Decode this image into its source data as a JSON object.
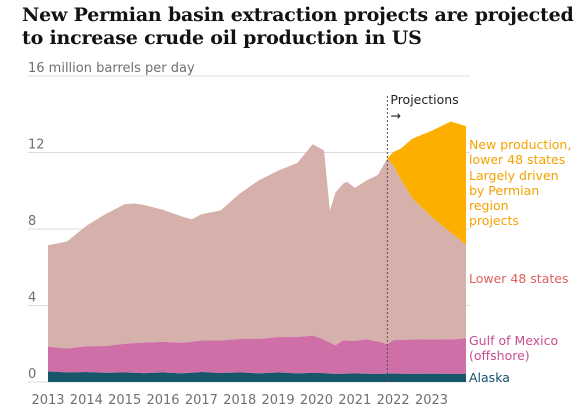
{
  "chart_data": {
    "type": "area",
    "title": "New Permian basin extraction projects are projected to increase crude oil production in US",
    "ylabel": "16 million barrels per day",
    "ylim": [
      0,
      16
    ],
    "yticks": [
      0,
      4,
      8,
      12
    ],
    "xlim": [
      2012.9,
      2024.1
    ],
    "xticks": [
      2013,
      2014,
      2015,
      2016,
      2017,
      2018,
      2019,
      2020,
      2021,
      2022,
      2023
    ],
    "projection_start": 2021.85,
    "projections_label": "Projections",
    "projections_arrow": "→",
    "colors": {
      "alaska": "#17566a",
      "gulf": "#cf6fa8",
      "lower48": "#d6b1ab",
      "new_production": "#fdaf00",
      "lower48_label": "#e05e5e",
      "gulf_label": "#c74d93",
      "alaska_label": "#145169",
      "new_label": "#f5a100"
    },
    "series": [
      {
        "name": "Alaska",
        "x": [
          2013,
          2013.5,
          2014,
          2014.5,
          2015,
          2015.5,
          2016,
          2016.5,
          2017,
          2017.5,
          2018,
          2018.5,
          2019,
          2019.5,
          2020,
          2020.5,
          2021,
          2021.5,
          2022,
          2022.5,
          2023,
          2023.5,
          2023.9
        ],
        "values": [
          0.55,
          0.5,
          0.52,
          0.48,
          0.5,
          0.46,
          0.5,
          0.45,
          0.52,
          0.47,
          0.5,
          0.45,
          0.5,
          0.45,
          0.48,
          0.42,
          0.45,
          0.42,
          0.44,
          0.42,
          0.43,
          0.42,
          0.43
        ]
      },
      {
        "name": "Gulf of Mexico (offshore)",
        "x": [
          2013,
          2013.5,
          2014,
          2014.5,
          2015,
          2015.5,
          2016,
          2016.5,
          2017,
          2017.5,
          2018,
          2018.5,
          2019,
          2019.5,
          2019.9,
          2020.2,
          2020.5,
          2020.7,
          2021,
          2021.3,
          2021.6,
          2021.85,
          2022,
          2022.5,
          2023,
          2023.5,
          2023.9
        ],
        "values": [
          1.3,
          1.25,
          1.35,
          1.4,
          1.5,
          1.6,
          1.6,
          1.6,
          1.65,
          1.7,
          1.75,
          1.8,
          1.85,
          1.9,
          1.95,
          1.75,
          1.5,
          1.75,
          1.7,
          1.8,
          1.7,
          1.55,
          1.75,
          1.8,
          1.8,
          1.8,
          1.85
        ]
      },
      {
        "name": "Lower 48 states",
        "x": [
          2013,
          2013.5,
          2014,
          2014.5,
          2015,
          2015.25,
          2015.5,
          2016,
          2016.5,
          2016.75,
          2017,
          2017.5,
          2018,
          2018.5,
          2019,
          2019.5,
          2019.9,
          2020.2,
          2020.35,
          2020.5,
          2020.8,
          2021,
          2021.3,
          2021.6,
          2021.85,
          2022.2,
          2022.5,
          2023,
          2023.5,
          2023.9
        ],
        "values": [
          5.3,
          5.6,
          6.3,
          6.9,
          7.3,
          7.3,
          7.2,
          6.9,
          6.6,
          6.4,
          6.6,
          6.8,
          7.6,
          8.3,
          8.7,
          9.1,
          10.0,
          9.9,
          6.9,
          8.0,
          8.3,
          8.0,
          8.3,
          8.7,
          9.7,
          8.4,
          7.4,
          6.4,
          5.6,
          4.9
        ]
      },
      {
        "name": "New production, lower 48 states",
        "x": [
          2021.85,
          2022.2,
          2022.5,
          2023,
          2023.5,
          2023.9
        ],
        "values": [
          0,
          1.6,
          3.1,
          4.5,
          5.8,
          6.2
        ]
      }
    ],
    "annotations": {
      "new_production": "New production, lower 48 states",
      "driven": "Largely driven by Permian region projects",
      "lower48": "Lower 48 states",
      "gulf": "Gulf of Mexico (offshore)",
      "alaska": "Alaska"
    },
    "grid": true,
    "legend": "direct labels at right"
  }
}
